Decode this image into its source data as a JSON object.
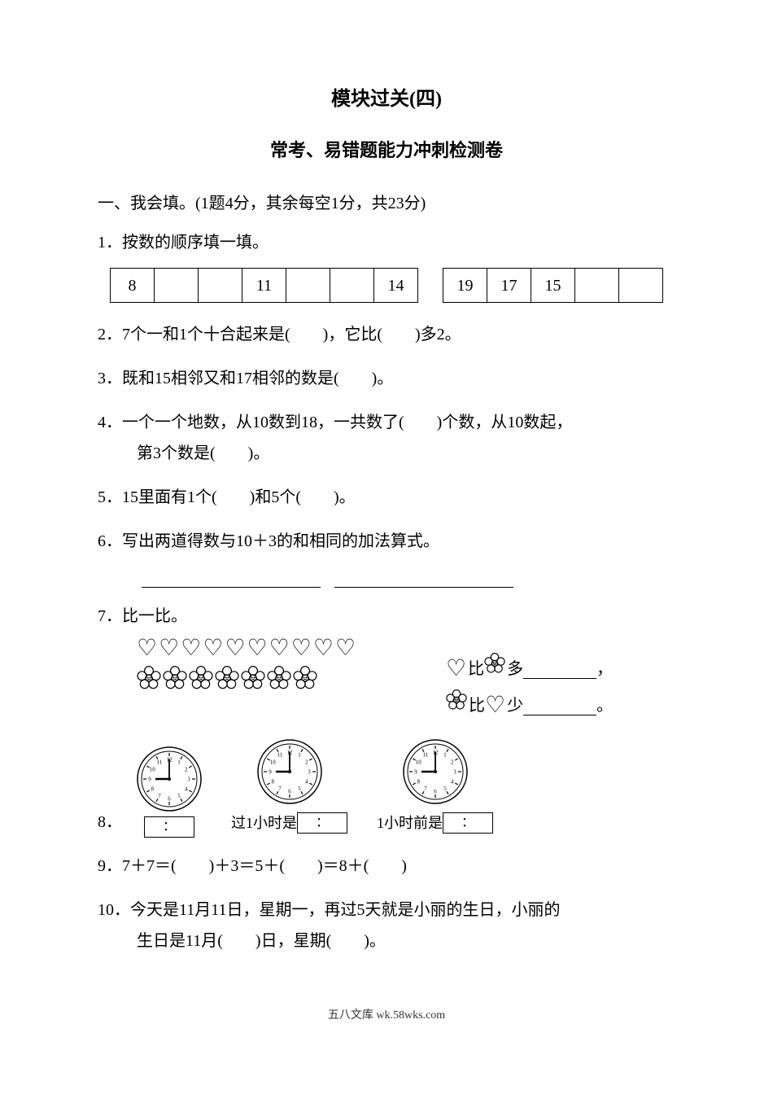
{
  "title_main": "模块过关(四)",
  "title_sub": "常考、易错题能力冲刺检测卷",
  "section1": "一、我会填。(1题4分，其余每空1分，共23分)",
  "q1": {
    "text": "1．按数的顺序填一填。",
    "table_a": [
      "8",
      "",
      "",
      "11",
      "",
      "",
      "14"
    ],
    "table_b": [
      "19",
      "17",
      "15",
      "",
      ""
    ]
  },
  "q2": {
    "text": "2．7个一和1个十合起来是(　　)，它比(　　)多2。"
  },
  "q3": {
    "text": "3．既和15相邻又和17相邻的数是(　　)。"
  },
  "q4": {
    "line1": "4．一个一个地数，从10数到18，一共数了(　　)个数，从10数起，",
    "line2": "第3个数是(　　)。"
  },
  "q5": {
    "text": "5．15里面有1个(　　)和5个(　　)。"
  },
  "q6": {
    "text": "6．写出两道得数与10＋3的和相同的加法算式。"
  },
  "q7": {
    "label": "7．比一比。",
    "hearts_count": 10,
    "flowers_count": 7,
    "heart_glyph": "♡",
    "heart_color": "#000000",
    "flower_color": "#000000",
    "r1_mid": "比",
    "r1_end": "多",
    "r2_mid": "比",
    "r2_end": "少",
    "tail1": "，",
    "tail2": "。"
  },
  "q8": {
    "label": "8．",
    "clock": {
      "hour": 9,
      "minute": 0,
      "radius": 40,
      "face_r": 34,
      "tick_in": 28,
      "tick_out": 32,
      "num_r": 24,
      "num_fontsize": 7,
      "hand_hour_len": 16,
      "hand_min_len": 24,
      "stroke": "#000000",
      "fill": "#ffffff"
    },
    "box_colon": "：",
    "mid_label": "过1小时是",
    "right_label": "1小时前是"
  },
  "q9": {
    "text": "9．7＋7＝(　　)＋3＝5＋(　　)＝8＋(　　)"
  },
  "q10": {
    "line1": "10．今天是11月11日，星期一，再过5天就是小丽的生日，小丽的",
    "line2": "生日是11月(　　)日，星期(　　)。"
  },
  "footer": "五八文库 wk.58wks.com",
  "footer_real": "五八文库 wk.58wks.com",
  "footer_text": "五八文库 wk.58wks.com",
  "footer_actual": "五八文库 wk.58wks.com",
  "footer_display": "五八文库 wk.58wks.com",
  "footer_final": "五八文库 wk.58wks.com"
}
